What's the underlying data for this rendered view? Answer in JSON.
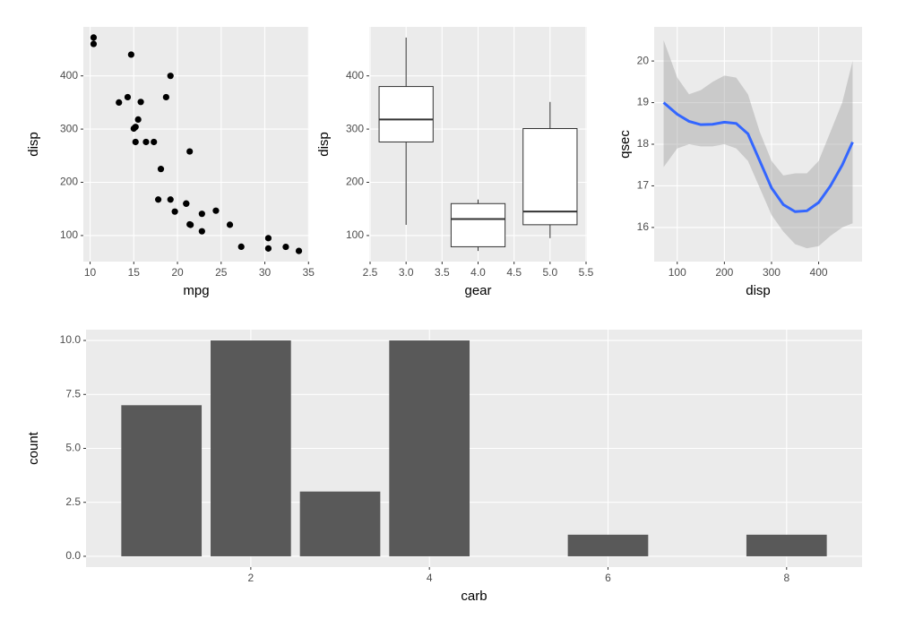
{
  "chart_data": [
    {
      "type": "scatter",
      "x_label": "mpg",
      "y_label": "disp",
      "color": "#000000",
      "x": [
        21,
        21,
        22.8,
        21.4,
        18.7,
        18.1,
        14.3,
        24.4,
        22.8,
        19.2,
        17.8,
        16.4,
        17.3,
        15.2,
        10.4,
        10.4,
        14.7,
        32.4,
        30.4,
        33.9,
        21.5,
        15.5,
        15.2,
        13.3,
        19.2,
        27.3,
        26,
        30.4,
        15.8,
        19.7,
        15,
        21.4
      ],
      "values": [
        160,
        160,
        108,
        258,
        360,
        225,
        360,
        146.7,
        140.8,
        167.6,
        167.6,
        275.8,
        275.8,
        275.8,
        472,
        460,
        440,
        78.7,
        75.7,
        71.1,
        120.1,
        318,
        304,
        350,
        400,
        79,
        120.3,
        95.1,
        351,
        145,
        301,
        121
      ],
      "xlim": [
        9.225,
        35.075
      ],
      "xticks": [
        10,
        15,
        20,
        25,
        30,
        35
      ],
      "ylim": [
        51.05,
        492.05
      ],
      "yticks": [
        100,
        200,
        300,
        400
      ],
      "grid": true
    },
    {
      "type": "box",
      "x_label": "gear",
      "y_label": "disp",
      "x": [
        3,
        4,
        5
      ],
      "min": [
        120.1,
        71.1,
        95.1
      ],
      "q1": [
        275.8,
        78.925,
        120.3
      ],
      "median": [
        318,
        130.9,
        145
      ],
      "q3": [
        380,
        160,
        301
      ],
      "max": [
        472,
        167.6,
        351
      ],
      "xlim": [
        2.4875,
        5.5125
      ],
      "xticks": [
        {
          "value": 2.5,
          "label": "2.5"
        },
        {
          "value": 3,
          "label": "3.0"
        },
        {
          "value": 3.5,
          "label": "3.5"
        },
        {
          "value": 4,
          "label": "4.0"
        },
        {
          "value": 4.5,
          "label": "4.5"
        },
        {
          "value": 5,
          "label": "5.0"
        },
        {
          "value": 5.5,
          "label": "5.5"
        }
      ],
      "ylim": [
        51.05,
        492.05
      ],
      "yticks": [
        100,
        200,
        300,
        400
      ],
      "grid": true
    },
    {
      "type": "smooth",
      "x_label": "disp",
      "y_label": "qsec",
      "color": "#3366FF",
      "band_color": "#999999",
      "x": [
        71.1,
        100,
        125,
        150,
        175,
        200,
        225,
        250,
        275,
        300,
        325,
        350,
        375,
        400,
        425,
        450,
        472
      ],
      "values": [
        19.0,
        18.72,
        18.55,
        18.47,
        18.48,
        18.53,
        18.5,
        18.25,
        17.6,
        16.95,
        16.55,
        16.38,
        16.4,
        16.6,
        17.0,
        17.5,
        18.05
      ],
      "lower": [
        17.45,
        17.9,
        18.0,
        17.95,
        17.95,
        18.0,
        17.9,
        17.6,
        16.95,
        16.3,
        15.9,
        15.6,
        15.5,
        15.55,
        15.8,
        16.0,
        16.1
      ],
      "upper": [
        20.5,
        19.6,
        19.2,
        19.3,
        19.5,
        19.65,
        19.6,
        19.2,
        18.3,
        17.6,
        17.25,
        17.3,
        17.3,
        17.6,
        18.3,
        19.0,
        20.0
      ],
      "xlim": [
        51.05,
        492.05
      ],
      "xticks": [
        100,
        200,
        300,
        400
      ],
      "ylim": [
        15.18,
        20.82
      ],
      "yticks": [
        16,
        17,
        18,
        19,
        20
      ],
      "grid": true
    },
    {
      "type": "bar",
      "x_label": "carb",
      "y_label": "count",
      "color": "#595959",
      "x": [
        1,
        2,
        3,
        4,
        6,
        8
      ],
      "values": [
        7,
        10,
        3,
        10,
        1,
        1
      ],
      "xlim": [
        0.155,
        8.845
      ],
      "xticks": [
        2,
        4,
        6,
        8
      ],
      "ylim": [
        -0.5,
        10.5
      ],
      "yticks": [
        {
          "value": 0,
          "label": "0.0"
        },
        {
          "value": 2.5,
          "label": "2.5"
        },
        {
          "value": 5,
          "label": "5.0"
        },
        {
          "value": 7.5,
          "label": "7.5"
        },
        {
          "value": 10,
          "label": "10.0"
        }
      ],
      "grid": true
    }
  ]
}
